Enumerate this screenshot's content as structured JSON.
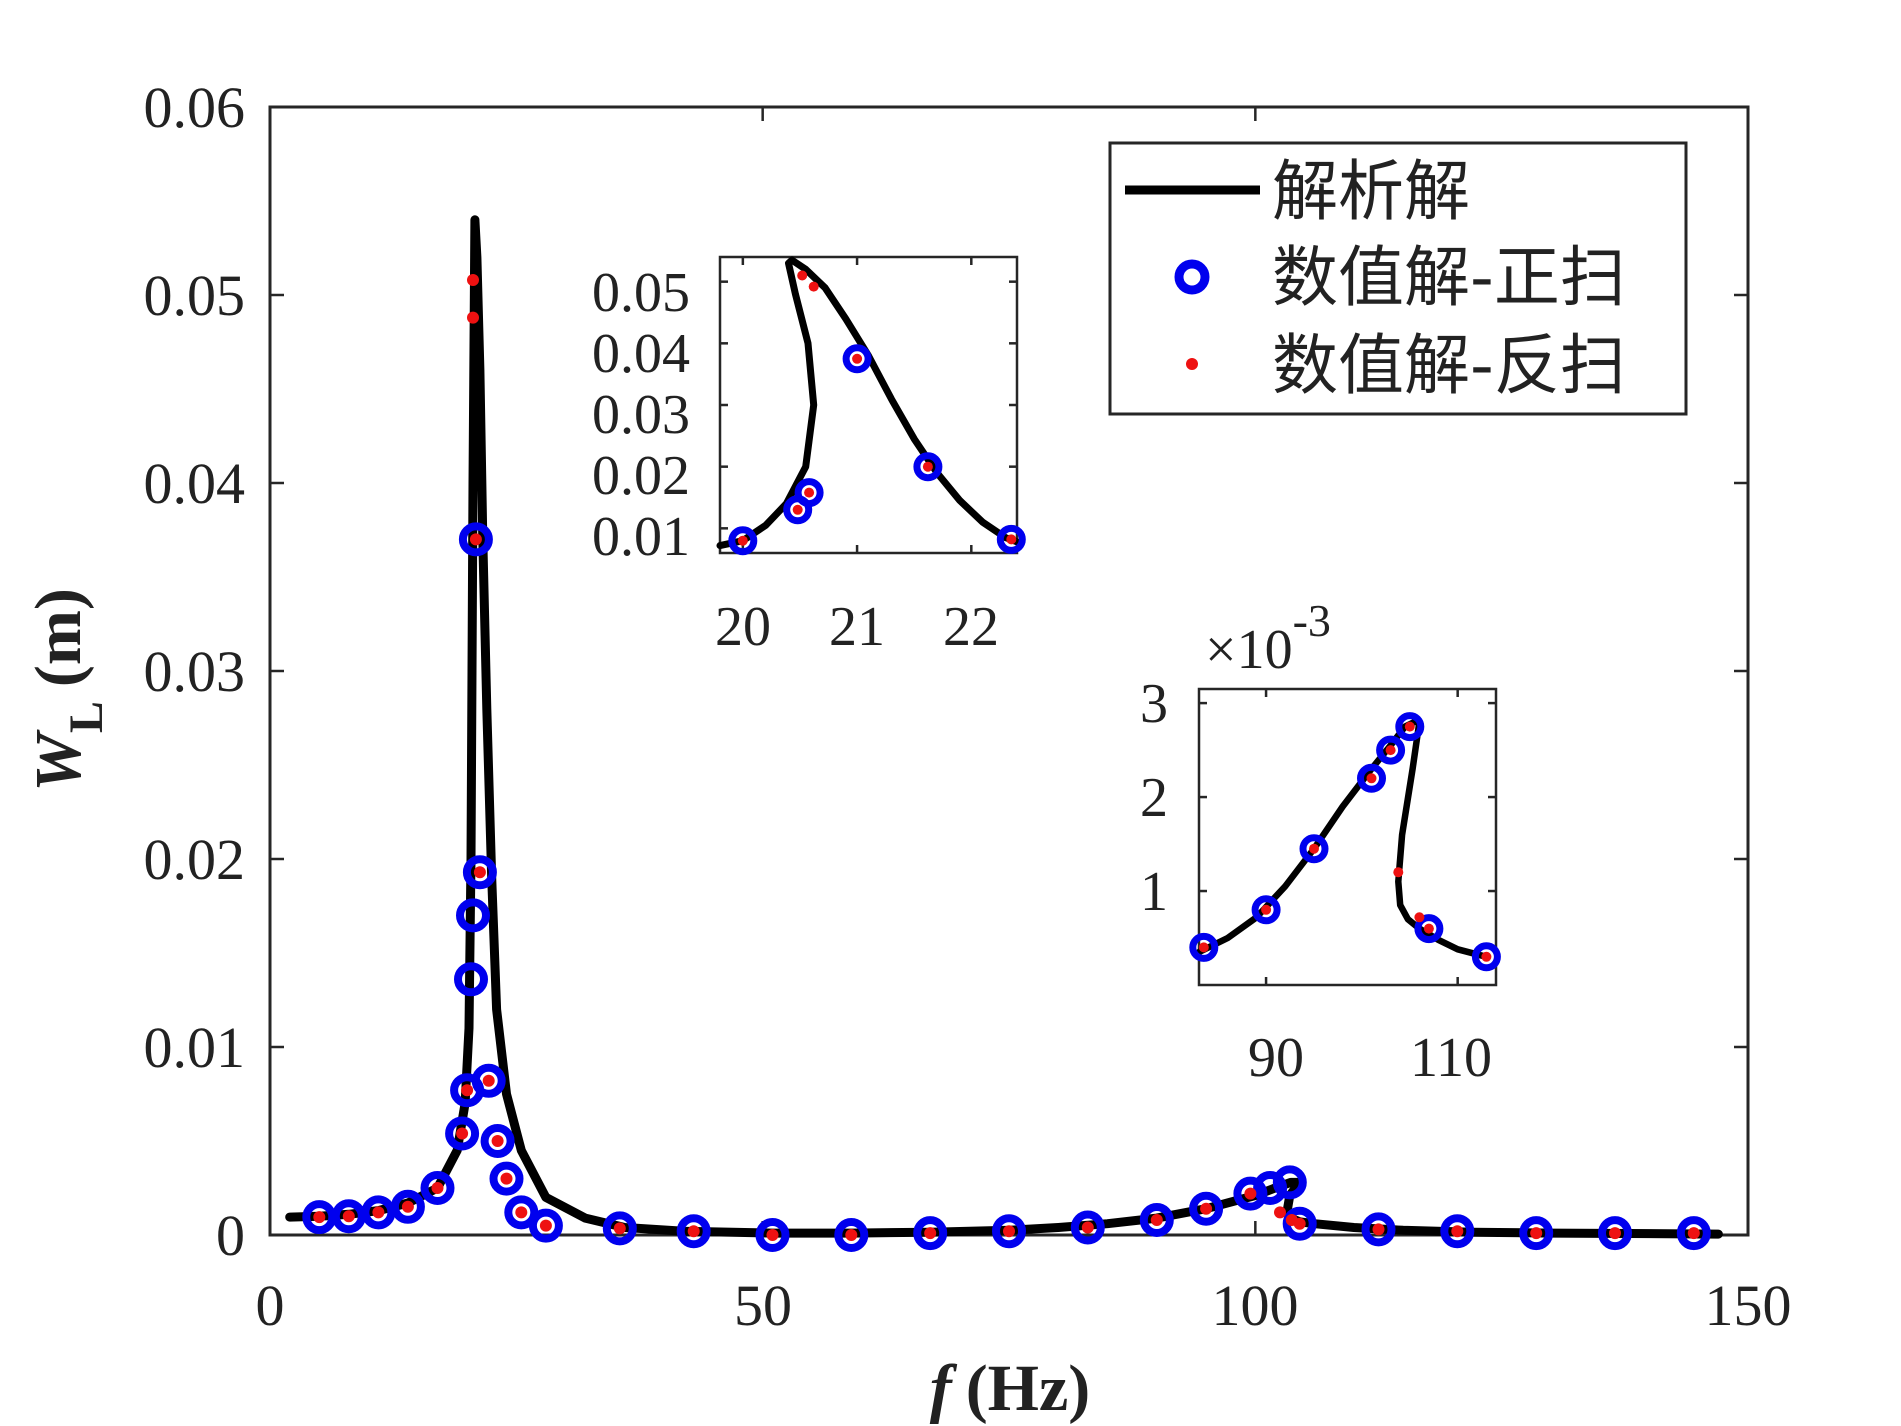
{
  "chart_data": [
    {
      "name": "main",
      "type": "line",
      "xlabel_italic": "f",
      "xlabel_unit": "(Hz)",
      "ylabel_symbol": "W",
      "ylabel_subscript": "L",
      "ylabel_unit": "(m)",
      "xlim": [
        0,
        150
      ],
      "ylim": [
        0,
        0.06
      ],
      "xticks": [
        0,
        50,
        100,
        150
      ],
      "xtick_labels": [
        "0",
        "50",
        "100",
        "150"
      ],
      "yticks": [
        0,
        0.01,
        0.02,
        0.03,
        0.04,
        0.05,
        0.06
      ],
      "ytick_labels": [
        "0",
        "0.01",
        "0.02",
        "0.03",
        "0.04",
        "0.05",
        "0.06"
      ],
      "grid": false,
      "legend_position": "top-right",
      "legend": [
        {
          "label": "解析解",
          "marker": "line"
        },
        {
          "label": "数值解-正扫",
          "marker": "circle"
        },
        {
          "label": "数值解-反扫",
          "marker": "dot"
        }
      ],
      "series": [
        {
          "name": "解析解",
          "style": "line",
          "color": "#000000",
          "x": [
            2,
            5,
            8,
            11,
            14,
            17,
            19,
            19.8,
            20.2,
            20.4,
            20.5,
            20.6,
            20.8,
            21.0,
            21.3,
            21.6,
            22,
            22.5,
            23,
            24,
            25.5,
            28,
            32,
            36,
            42,
            51,
            59,
            67,
            75,
            80,
            85,
            90,
            95,
            100,
            102,
            103.6,
            104.5,
            103.5,
            103.2,
            103.6,
            104.5,
            106,
            110,
            115,
            122,
            130,
            138,
            147
          ],
          "y": [
            0.00095,
            0.001,
            0.0011,
            0.0013,
            0.0017,
            0.0025,
            0.0045,
            0.007,
            0.011,
            0.02,
            0.03,
            0.04,
            0.054,
            0.052,
            0.046,
            0.037,
            0.028,
            0.019,
            0.012,
            0.0075,
            0.0045,
            0.002,
            0.0009,
            0.0004,
            0.0002,
            0.0001,
            0.0001,
            0.00015,
            0.00025,
            0.0004,
            0.0006,
            0.0009,
            0.0014,
            0.0021,
            0.0025,
            0.0028,
            0.0028,
            0.0021,
            0.0012,
            0.0009,
            0.0007,
            0.0006,
            0.0004,
            0.00025,
            0.00015,
            0.0001,
            8e-05,
            5e-05
          ]
        },
        {
          "name": "数值解-正扫",
          "style": "circle",
          "color": "#0000ee",
          "x": [
            5,
            8,
            11,
            14,
            17,
            19.5,
            20,
            20.4,
            20.6,
            20.9,
            21.3,
            22.2,
            23.1,
            24,
            25.5,
            28,
            35.5,
            43,
            51,
            59,
            67,
            75,
            83,
            90,
            95,
            99.5,
            101.5,
            103.5,
            104.5,
            112.5,
            120.5,
            128.5,
            136.5,
            144.5
          ],
          "y": [
            0.00095,
            0.001,
            0.0012,
            0.0015,
            0.0025,
            0.0054,
            0.0077,
            0.0136,
            0.017,
            0.037,
            0.0193,
            0.0082,
            0.005,
            0.003,
            0.0012,
            0.0005,
            0.00035,
            0.0002,
            0.0,
            0.0,
            0.0001,
            0.0002,
            0.0004,
            0.0008,
            0.0014,
            0.0022,
            0.0025,
            0.0028,
            0.0006,
            0.0003,
            0.0002,
            0.0001,
            0.0001,
            0.0001
          ]
        },
        {
          "name": "数值解-反扫",
          "style": "dot",
          "color": "#ee1111",
          "x": [
            5,
            8,
            11,
            14,
            17,
            19.5,
            20,
            20.6,
            20.6,
            20.9,
            21.3,
            22.2,
            23.1,
            24,
            25.5,
            28,
            35.5,
            43,
            51,
            59,
            67,
            75,
            83,
            90,
            95,
            99.5,
            102.5,
            103.7,
            104.5,
            112.5,
            120.5,
            128.5,
            136.5,
            144.5
          ],
          "y": [
            0.00095,
            0.001,
            0.0012,
            0.0015,
            0.0025,
            0.0054,
            0.0077,
            0.0508,
            0.0488,
            0.037,
            0.0193,
            0.0082,
            0.005,
            0.003,
            0.0012,
            0.0005,
            0.00035,
            0.0002,
            0.0,
            0.0,
            0.0001,
            0.0002,
            0.0004,
            0.0008,
            0.0014,
            0.0022,
            0.0012,
            0.0008,
            0.0006,
            0.0003,
            0.0002,
            0.0001,
            0.0001,
            0.0001
          ]
        }
      ]
    },
    {
      "name": "inset-primary-resonance",
      "type": "line",
      "xlim": [
        19.8,
        22.4
      ],
      "ylim": [
        0.006,
        0.054
      ],
      "xticks": [
        20,
        21,
        22
      ],
      "xtick_labels": [
        "20",
        "21",
        "22"
      ],
      "yticks": [
        0.01,
        0.02,
        0.03,
        0.04,
        0.05
      ],
      "ytick_labels": [
        "0.01",
        "0.02",
        "0.03",
        "0.04",
        "0.05"
      ],
      "series": [
        {
          "name": "解析解",
          "style": "line",
          "color": "#000000",
          "x": [
            19.8,
            20.0,
            20.2,
            20.38,
            20.55,
            20.62,
            20.57,
            20.46,
            20.4,
            20.43,
            20.55,
            20.72,
            20.9,
            21.1,
            21.3,
            21.5,
            21.7,
            21.9,
            22.1,
            22.3,
            22.4
          ],
          "y": [
            0.0072,
            0.008,
            0.0105,
            0.014,
            0.02,
            0.03,
            0.04,
            0.048,
            0.053,
            0.0535,
            0.052,
            0.049,
            0.044,
            0.038,
            0.031,
            0.0245,
            0.019,
            0.0145,
            0.011,
            0.0085,
            0.0078
          ]
        },
        {
          "name": "数值解-正扫",
          "style": "circle",
          "color": "#0000ee",
          "x": [
            20.0,
            20.48,
            20.58,
            21.0,
            21.62,
            22.35
          ],
          "y": [
            0.008,
            0.013,
            0.0158,
            0.0375,
            0.02,
            0.0082
          ]
        },
        {
          "name": "数值解-反扫",
          "style": "dot",
          "color": "#ee1111",
          "x": [
            20.0,
            20.48,
            20.58,
            20.52,
            20.62,
            21.0,
            21.62,
            22.35
          ],
          "y": [
            0.008,
            0.013,
            0.0158,
            0.051,
            0.0492,
            0.0375,
            0.02,
            0.0082
          ]
        }
      ]
    },
    {
      "name": "inset-secondary-resonance",
      "type": "line",
      "multiplier_prefix": "×10",
      "multiplier_exponent": "-3",
      "xlim": [
        83,
        114
      ],
      "ylim": [
        0.0,
        3.15
      ],
      "xticks": [
        90,
        110
      ],
      "xtick_labels": [
        "90",
        "110"
      ],
      "yticks": [
        1,
        2,
        3
      ],
      "ytick_labels": [
        "1",
        "2",
        "3"
      ],
      "series": [
        {
          "name": "解析解",
          "style": "line",
          "color": "#000000",
          "x": [
            83,
            86,
            89,
            92,
            95,
            98,
            101,
            103,
            104.5,
            105.5,
            106,
            105.3,
            104.2,
            103.8,
            104.0,
            104.8,
            106,
            108,
            110,
            113
          ],
          "y": [
            0.35,
            0.5,
            0.72,
            1.05,
            1.45,
            1.9,
            2.3,
            2.55,
            2.75,
            2.8,
            2.8,
            2.3,
            1.6,
            1.1,
            0.85,
            0.7,
            0.6,
            0.48,
            0.38,
            0.3
          ]
        },
        {
          "name": "数值解-正扫",
          "style": "circle",
          "color": "#0000ee",
          "x": [
            83.5,
            90,
            95,
            101,
            103,
            105,
            107,
            113
          ],
          "y": [
            0.4,
            0.8,
            1.45,
            2.2,
            2.5,
            2.75,
            0.6,
            0.3
          ]
        },
        {
          "name": "数值解-反扫",
          "style": "dot",
          "color": "#ee1111",
          "x": [
            83.5,
            90,
            95,
            101,
            103,
            105,
            103.8,
            106,
            107,
            113
          ],
          "y": [
            0.4,
            0.8,
            1.45,
            2.2,
            2.5,
            2.75,
            1.2,
            0.72,
            0.6,
            0.3
          ]
        }
      ]
    }
  ]
}
